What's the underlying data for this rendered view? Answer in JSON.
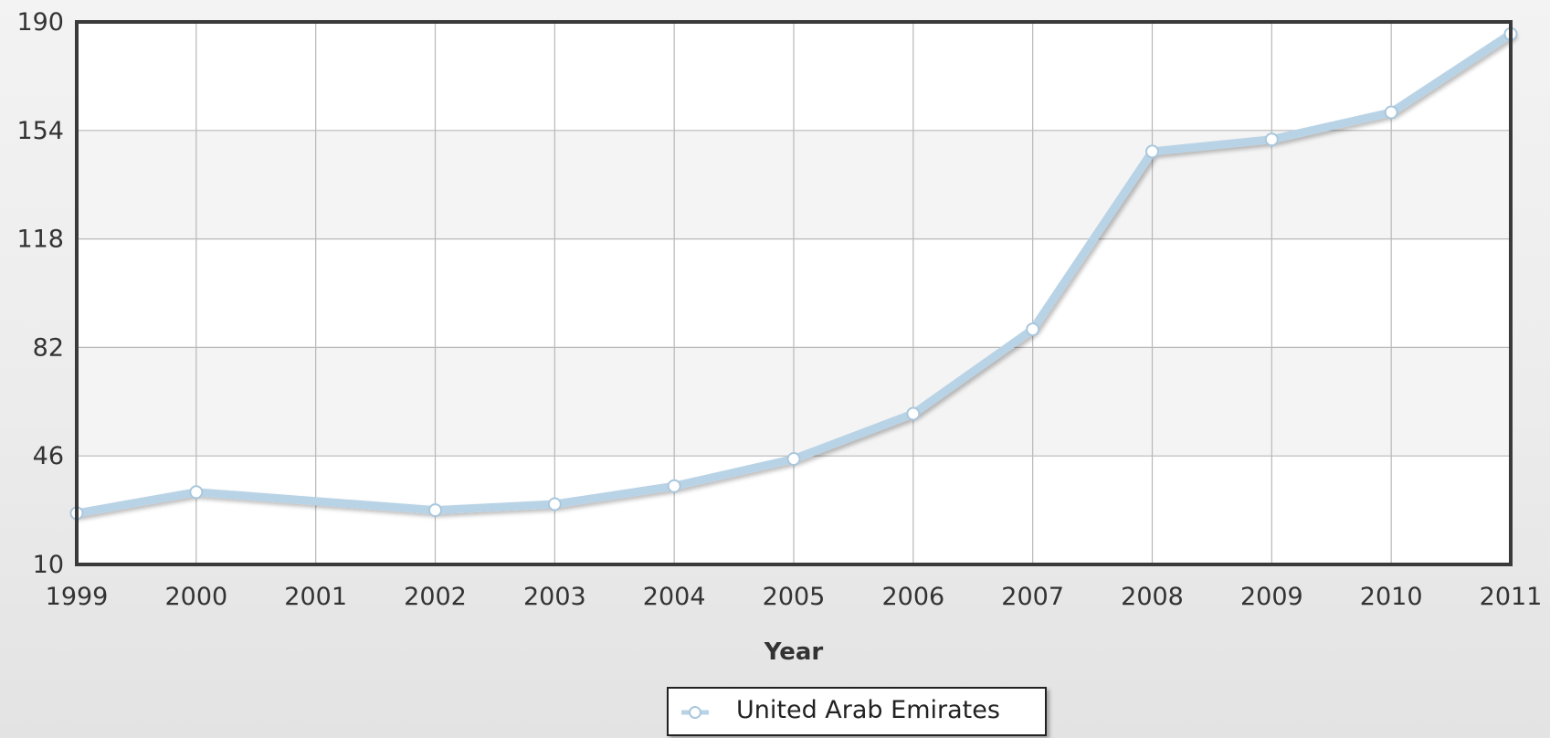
{
  "chart_data": {
    "type": "line",
    "title": "",
    "xlabel": "Year",
    "ylabel": "",
    "categories": [
      "1999",
      "2000",
      "2001",
      "2002",
      "2003",
      "2004",
      "2005",
      "2006",
      "2007",
      "2008",
      "2009",
      "2010",
      "2011"
    ],
    "series": [
      {
        "name": "United Arab Emirates",
        "values": [
          27,
          34,
          null,
          28,
          30,
          36,
          45,
          60,
          88,
          147,
          151,
          160,
          186
        ],
        "color": "#b9d3e6",
        "marker_fill": "#ffffff",
        "marker_stroke": "#a9c7dd"
      }
    ],
    "yticks": [
      10,
      46,
      82,
      118,
      154,
      190
    ],
    "ylim": [
      10,
      190
    ],
    "grid": true,
    "legend": "bottom-center",
    "colors": {
      "plot_band_light": "#ffffff",
      "plot_band_dark": "#f4f4f4",
      "grid": "#b8b8b8",
      "axis": "#3a3a3a"
    }
  }
}
